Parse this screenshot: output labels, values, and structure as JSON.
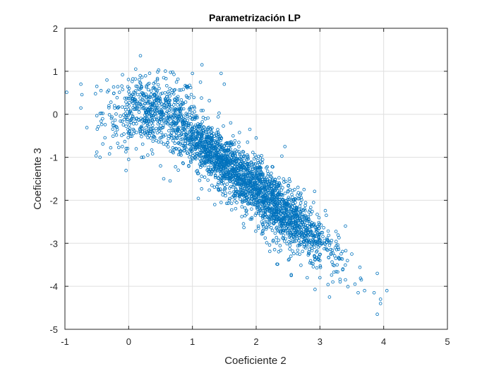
{
  "chart_data": {
    "type": "scatter",
    "title": "Parametrización LP",
    "xlabel": "Coeficiente 2",
    "ylabel": "Coeficiente 3",
    "xlim": [
      -1,
      5
    ],
    "ylim": [
      -5,
      2
    ],
    "xticks": [
      "-1",
      "0",
      "1",
      "2",
      "3",
      "4",
      "5"
    ],
    "yticks": [
      "2",
      "1",
      "0",
      "-1",
      "-2",
      "-3",
      "-4",
      "-5"
    ],
    "grid": true,
    "marker": "open-circle",
    "marker_color": "#0072BD",
    "series": [
      {
        "points": [
          [
            -0.75,
            0.7
          ],
          [
            -0.5,
            0.65
          ],
          [
            -0.45,
            -1.0
          ],
          [
            -0.5,
            -0.88
          ],
          [
            -0.3,
            -0.92
          ],
          [
            -0.1,
            -0.75
          ],
          [
            0.0,
            -1.05
          ],
          [
            0.3,
            -0.95
          ],
          [
            0.5,
            -1.2
          ],
          [
            0.55,
            -1.5
          ],
          [
            0.65,
            -1.55
          ],
          [
            0.2,
            0.65
          ],
          [
            0.45,
            0.8
          ],
          [
            0.55,
            0.85
          ],
          [
            0.75,
            0.75
          ],
          [
            1.0,
            0.95
          ],
          [
            1.15,
            1.15
          ],
          [
            1.45,
            0.95
          ],
          [
            1.5,
            0.7
          ],
          [
            0.1,
            0.5
          ],
          [
            1.6,
            -0.2
          ],
          [
            1.9,
            -0.35
          ],
          [
            2.0,
            -0.55
          ],
          [
            1.75,
            -1.55
          ],
          [
            1.35,
            -2.1
          ],
          [
            1.45,
            -2.05
          ],
          [
            2.45,
            -0.75
          ],
          [
            2.75,
            -1.75
          ],
          [
            2.9,
            -2.05
          ],
          [
            3.1,
            -2.35
          ],
          [
            3.4,
            -2.6
          ],
          [
            3.5,
            -3.25
          ],
          [
            3.3,
            -3.35
          ],
          [
            2.55,
            -3.75
          ],
          [
            2.8,
            -3.8
          ],
          [
            3.0,
            -3.8
          ],
          [
            3.15,
            -4.25
          ],
          [
            3.4,
            -3.85
          ],
          [
            3.55,
            -3.95
          ],
          [
            3.65,
            -3.85
          ],
          [
            3.6,
            -4.15
          ],
          [
            3.85,
            -4.15
          ],
          [
            3.9,
            -3.7
          ],
          [
            3.95,
            -4.3
          ],
          [
            3.95,
            -4.4
          ],
          [
            3.9,
            -4.65
          ],
          [
            4.05,
            -4.1
          ],
          [
            3.7,
            -4.1
          ]
        ]
      }
    ]
  }
}
